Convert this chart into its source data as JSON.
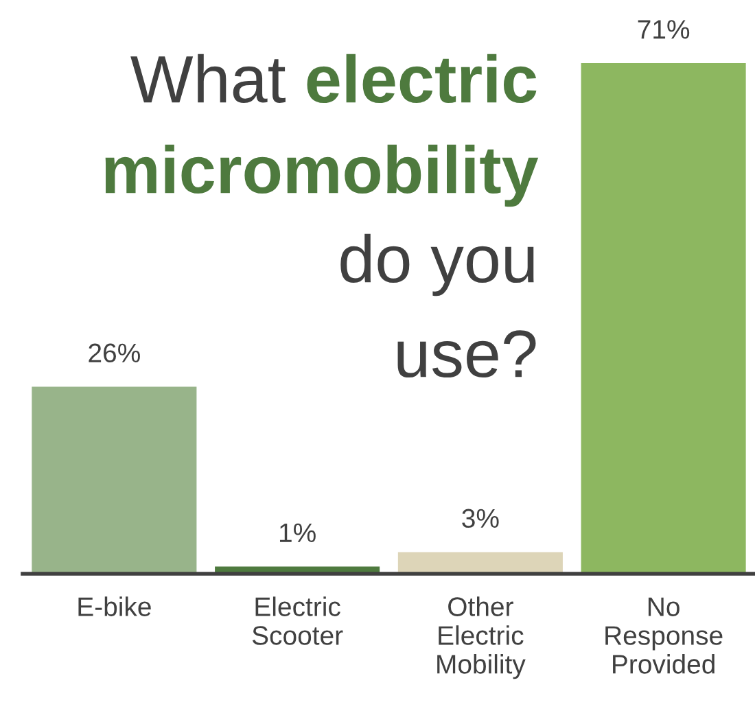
{
  "chart_data": {
    "type": "bar",
    "title": "What electric micromobility do you use?",
    "categories": [
      "E-bike",
      "Electric\nScooter",
      "Other\nElectric\nMobility",
      "No\nResponse\nProvided"
    ],
    "values": [
      26,
      1,
      3,
      71
    ],
    "colors": [
      "#98b48a",
      "#4e7a3e",
      "#ddd5b8",
      "#8db760"
    ],
    "value_labels": [
      "26%",
      "1%",
      "3%",
      "71%"
    ]
  }
}
